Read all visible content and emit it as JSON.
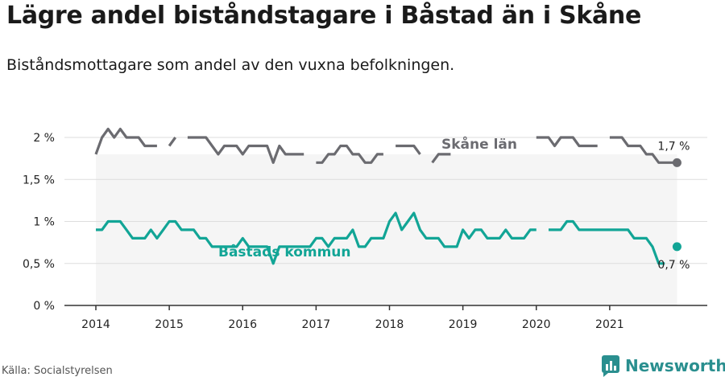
{
  "title": "Lägre andel biståndstagare i Båstad än i Skåne",
  "subtitle": "Biståndsmottagare som andel av den vuxna befolkningen.",
  "source": "Källa: Socialstyrelsen",
  "brand": "Newsworthy",
  "colors": {
    "skane": "#6b6b70",
    "bastad": "#12a596",
    "band": "#f5f5f5",
    "grid": "#dddddd",
    "axis": "#333333",
    "brand": "#2a8f8f"
  },
  "chart_data": {
    "type": "line",
    "title": "Lägre andel biståndstagare i Båstad än i Skåne",
    "subtitle": "Biståndsmottagare som andel av den vuxna befolkningen.",
    "xlabel": "",
    "ylabel": "",
    "ylim": [
      0,
      2.2
    ],
    "xlim": [
      2013.75,
      2022.2
    ],
    "yticks": [
      0,
      0.5,
      1,
      1.5,
      2
    ],
    "yticklabels": [
      "0 %",
      "0,5 %",
      "1 %",
      "1,5 %",
      "2 %"
    ],
    "xticks": [
      2014,
      2015,
      2016,
      2017,
      2018,
      2019,
      2020,
      2021
    ],
    "xticklabels": [
      "2014",
      "2015",
      "2016",
      "2017",
      "2018",
      "2019",
      "2020",
      "2021"
    ],
    "grid": true,
    "series": [
      {
        "name": "Skåne län",
        "end_label": "1,7 %",
        "x": [
          2014.0,
          2014.083,
          2014.167,
          2014.25,
          2014.333,
          2014.417,
          2014.5,
          2014.583,
          2014.667,
          2014.75,
          2014.833,
          2014.917,
          2015.0,
          2015.083,
          2015.167,
          2015.25,
          2015.333,
          2015.417,
          2015.5,
          2015.583,
          2015.667,
          2015.75,
          2015.833,
          2015.917,
          2016.0,
          2016.083,
          2016.167,
          2016.25,
          2016.333,
          2016.417,
          2016.5,
          2016.583,
          2016.667,
          2016.75,
          2016.833,
          2016.917,
          2017.0,
          2017.083,
          2017.167,
          2017.25,
          2017.333,
          2017.417,
          2017.5,
          2017.583,
          2017.667,
          2017.75,
          2017.833,
          2017.917,
          2018.0,
          2018.083,
          2018.167,
          2018.25,
          2018.333,
          2018.417,
          2018.5,
          2018.583,
          2018.667,
          2018.75,
          2018.833,
          2018.917,
          2019.0,
          2019.083,
          2019.167,
          2019.25,
          2019.333,
          2019.417,
          2019.5,
          2019.583,
          2019.667,
          2019.75,
          2019.833,
          2019.917,
          2020.0,
          2020.083,
          2020.167,
          2020.25,
          2020.333,
          2020.417,
          2020.5,
          2020.583,
          2020.667,
          2020.75,
          2020.833,
          2020.917,
          2021.0,
          2021.083,
          2021.167,
          2021.25,
          2021.333,
          2021.417,
          2021.5,
          2021.583,
          2021.667,
          2021.75,
          2021.833,
          2021.917
        ],
        "values": [
          1.8,
          2.0,
          2.1,
          2.0,
          2.1,
          2.0,
          2.0,
          2.0,
          1.9,
          1.9,
          1.9,
          null,
          1.9,
          2.0,
          null,
          2.0,
          2.0,
          2.0,
          2.0,
          1.9,
          1.8,
          1.9,
          1.9,
          1.9,
          1.8,
          1.9,
          1.9,
          1.9,
          1.9,
          1.7,
          1.9,
          1.8,
          1.8,
          1.8,
          1.8,
          null,
          1.7,
          1.7,
          1.8,
          1.8,
          1.9,
          1.9,
          1.8,
          1.8,
          1.7,
          1.7,
          1.8,
          1.8,
          null,
          1.9,
          1.9,
          1.9,
          1.9,
          1.8,
          null,
          1.7,
          1.8,
          1.8,
          1.8,
          null,
          1.8,
          null,
          null,
          null,
          null,
          null,
          null,
          null,
          null,
          null,
          null,
          null,
          2.0,
          2.0,
          2.0,
          1.9,
          2.0,
          2.0,
          2.0,
          1.9,
          1.9,
          1.9,
          1.9,
          null,
          2.0,
          2.0,
          2.0,
          1.9,
          1.9,
          1.9,
          1.8,
          1.8,
          1.7,
          1.7,
          1.7,
          1.7
        ]
      },
      {
        "name": "Båstads kommun",
        "end_label": "0,7 %",
        "x": [
          2014.0,
          2014.083,
          2014.167,
          2014.25,
          2014.333,
          2014.417,
          2014.5,
          2014.583,
          2014.667,
          2014.75,
          2014.833,
          2014.917,
          2015.0,
          2015.083,
          2015.167,
          2015.25,
          2015.333,
          2015.417,
          2015.5,
          2015.583,
          2015.667,
          2015.75,
          2015.833,
          2015.917,
          2016.0,
          2016.083,
          2016.167,
          2016.25,
          2016.333,
          2016.417,
          2016.5,
          2016.583,
          2016.667,
          2016.75,
          2016.833,
          2016.917,
          2017.0,
          2017.083,
          2017.167,
          2017.25,
          2017.333,
          2017.417,
          2017.5,
          2017.583,
          2017.667,
          2017.75,
          2017.833,
          2017.917,
          2018.0,
          2018.083,
          2018.167,
          2018.25,
          2018.333,
          2018.417,
          2018.5,
          2018.583,
          2018.667,
          2018.75,
          2018.833,
          2018.917,
          2019.0,
          2019.083,
          2019.167,
          2019.25,
          2019.333,
          2019.417,
          2019.5,
          2019.583,
          2019.667,
          2019.75,
          2019.833,
          2019.917,
          2020.0,
          2020.083,
          2020.167,
          2020.25,
          2020.333,
          2020.417,
          2020.5,
          2020.583,
          2020.667,
          2020.75,
          2020.833,
          2020.917,
          2021.0,
          2021.083,
          2021.167,
          2021.25,
          2021.333,
          2021.417,
          2021.5,
          2021.583,
          2021.667,
          2021.75,
          2021.833,
          2021.917
        ],
        "values": [
          0.9,
          0.9,
          1.0,
          1.0,
          1.0,
          0.9,
          0.8,
          0.8,
          0.8,
          0.9,
          0.8,
          0.9,
          1.0,
          1.0,
          0.9,
          0.9,
          0.9,
          0.8,
          0.8,
          0.7,
          0.7,
          0.7,
          0.7,
          0.7,
          0.8,
          0.7,
          0.7,
          0.7,
          0.7,
          0.5,
          0.7,
          0.7,
          0.7,
          0.7,
          0.7,
          0.7,
          0.8,
          0.8,
          0.7,
          0.8,
          0.8,
          0.8,
          0.9,
          0.7,
          0.7,
          0.8,
          0.8,
          0.8,
          1.0,
          1.1,
          0.9,
          1.0,
          1.1,
          0.9,
          0.8,
          0.8,
          0.8,
          0.7,
          0.7,
          0.7,
          0.9,
          0.8,
          0.9,
          0.9,
          0.8,
          0.8,
          0.8,
          0.9,
          0.8,
          0.8,
          0.8,
          0.9,
          0.9,
          null,
          0.9,
          0.9,
          0.9,
          1.0,
          1.0,
          0.9,
          0.9,
          0.9,
          0.9,
          0.9,
          0.9,
          0.9,
          0.9,
          0.9,
          0.8,
          0.8,
          0.8,
          0.7,
          0.5,
          0.5,
          null,
          0.7
        ]
      }
    ],
    "annotations": [
      {
        "text": "Skåne län",
        "series": "Skåne län"
      },
      {
        "text": "Båstads kommun",
        "series": "Båstads kommun"
      }
    ]
  }
}
